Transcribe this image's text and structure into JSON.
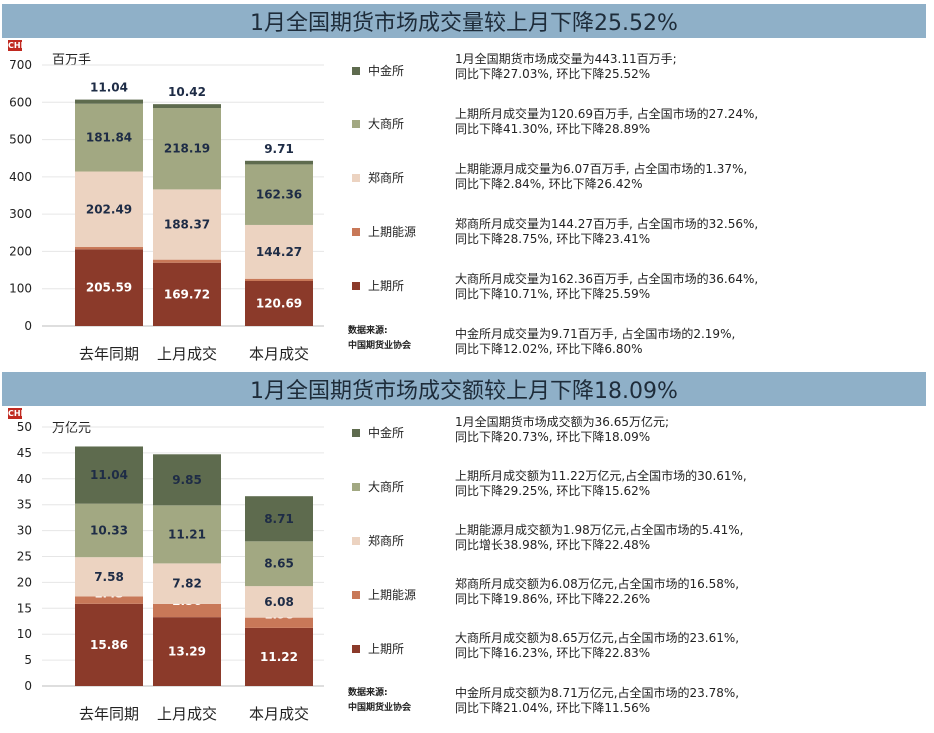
{
  "colors": {
    "banner": "#8fb0c8",
    "shfe": "#8b3a2a",
    "ine": "#c87858",
    "czce": "#ecd3c1",
    "dce": "#a2a882",
    "cffex": "#5e6b4e",
    "logo": "#c0281f"
  },
  "logo_text": "CHI",
  "panels": [
    {
      "title": "1月全国期货市场成交量较上月下降25.52%",
      "unit": "百万手",
      "legend": [
        "中金所",
        "大商所",
        "郑商所",
        "上期能源",
        "上期所"
      ],
      "source": [
        "数据来源:",
        "中国期货业协会"
      ],
      "notes": [
        [
          "1月全国期货市场成交量为443.11百万手;",
          "同比下降27.03%, 环比下降25.52%"
        ],
        [
          "上期所月成交量为120.69百万手,  占全国市场的27.24%,",
          "同比下降41.30%, 环比下降28.89%"
        ],
        [
          "上期能源月成交量为6.07百万手,  占全国市场的1.37%,",
          "同比下降2.84%, 环比下降26.42%"
        ],
        [
          "郑商所月成交量为144.27百万手,  占全国市场的32.56%,",
          "同比下降28.75%, 环比下降23.41%"
        ],
        [
          "大商所月成交量为162.36百万手,  占全国市场的36.64%,",
          "同比下降10.71%, 环比下降25.59%"
        ],
        [
          "中金所月成交量为9.71百万手,  占全国市场的2.19%,",
          "同比下降12.02%, 环比下降6.80%"
        ]
      ]
    },
    {
      "title": "1月全国期货市场成交额较上月下降18.09%",
      "unit": "万亿元",
      "legend": [
        "中金所",
        "大商所",
        "郑商所",
        "上期能源",
        "上期所"
      ],
      "source": [
        "数据来源:",
        "中国期货业协会"
      ],
      "notes": [
        [
          "1月全国期货市场成交额为36.65万亿元;",
          "同比下降20.73%, 环比下降18.09%"
        ],
        [
          "上期所月成交额为11.22万亿元,占全国市场的30.61%,",
          "同比下降29.25%, 环比下降15.62%"
        ],
        [
          "上期能源月成交额为1.98万亿元,占全国市场的5.41%,",
          "同比增长38.98%, 环比下降22.48%"
        ],
        [
          "郑商所月成交额为6.08万亿元,占全国市场的16.58%,",
          "同比下降19.86%, 环比下降22.26%"
        ],
        [
          "大商所月成交额为8.65万亿元,占全国市场的23.61%,",
          "同比下降16.23%, 环比下降22.83%"
        ],
        [
          "中金所月成交额为8.71万亿元,占全国市场的23.78%,",
          "同比下降21.04%, 环比下降11.56%"
        ]
      ]
    }
  ],
  "chart_data": [
    {
      "type": "bar",
      "stacked": true,
      "title": "1月全国期货市场成交量较上月下降25.52%",
      "ylabel": "百万手",
      "ylim": [
        0,
        700
      ],
      "yticks": [
        0,
        100,
        200,
        300,
        400,
        500,
        600,
        700
      ],
      "categories": [
        "去年同期",
        "上月成交",
        "本月成交"
      ],
      "series": [
        {
          "name": "上期所",
          "values": [
            205.59,
            169.72,
            120.69
          ]
        },
        {
          "name": "上期能源",
          "values": [
            6.25,
            8.26,
            6.07
          ]
        },
        {
          "name": "郑商所",
          "values": [
            202.49,
            188.37,
            144.27
          ]
        },
        {
          "name": "大商所",
          "values": [
            181.84,
            218.19,
            162.36
          ]
        },
        {
          "name": "中金所",
          "values": [
            11.04,
            10.42,
            9.71
          ]
        }
      ]
    },
    {
      "type": "bar",
      "stacked": true,
      "title": "1月全国期货市场成交额较上月下降18.09%",
      "ylabel": "万亿元",
      "ylim": [
        0,
        50
      ],
      "yticks": [
        0,
        5,
        10,
        15,
        20,
        25,
        30,
        35,
        40,
        45,
        50
      ],
      "categories": [
        "去年同期",
        "上月成交",
        "本月成交"
      ],
      "series": [
        {
          "name": "上期所",
          "values": [
            15.86,
            13.29,
            11.22
          ]
        },
        {
          "name": "上期能源",
          "values": [
            1.43,
            2.56,
            1.98
          ]
        },
        {
          "name": "郑商所",
          "values": [
            7.58,
            7.82,
            6.08
          ]
        },
        {
          "name": "大商所",
          "values": [
            10.33,
            11.21,
            8.65
          ]
        },
        {
          "name": "中金所",
          "values": [
            11.04,
            9.85,
            8.71
          ]
        }
      ]
    }
  ]
}
